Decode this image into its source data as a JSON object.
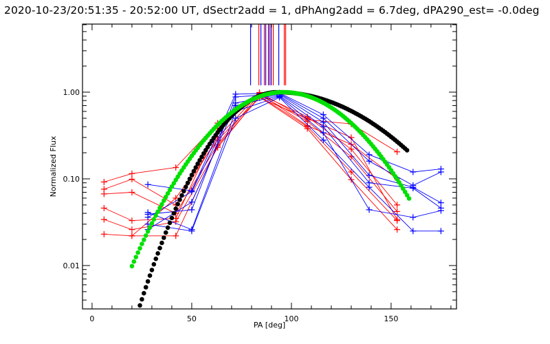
{
  "title": "2020-10-23/20:51:35 - 20:52:00 UT, dSectr2add = 1, dPhAng2add = 6.7deg, dPA290_est= -0.0deg",
  "colors": {
    "red": "#ff0000",
    "blue": "#0000ff",
    "black": "#000000",
    "green": "#00e000",
    "axis": "#000000"
  },
  "chart_data": {
    "type": "line",
    "title": "2020-10-23/20:51:35 - 20:52:00 UT, dSectr2add = 1, dPhAng2add = 6.7deg, dPA290_est= -0.0deg",
    "xlabel": "PA [deg]",
    "ylabel": "Normalized Flux",
    "xlim": [
      -4.8,
      182.8
    ],
    "ylim": [
      0.00316,
      6.1
    ],
    "yscale": "log",
    "xticks": [
      0,
      50,
      100,
      150
    ],
    "xtick_labels": [
      "0",
      "50",
      "100",
      "150"
    ],
    "xminor_step": 10,
    "yticks": [
      0.01,
      0.1,
      1.0
    ],
    "ytick_labels": [
      "0.01",
      "0.10",
      "1.00"
    ],
    "grid": false,
    "model_curves": [
      {
        "name": "black-model",
        "color": "#000000",
        "x_start": 21,
        "x_end": 158,
        "center": 93,
        "sigma_left": 20.5,
        "sigma_right": 37
      },
      {
        "name": "green-model",
        "color": "#00e000",
        "x_start": 20,
        "x_end": 159,
        "center": 96,
        "sigma_left": 25,
        "sigma_right": 26.5
      }
    ],
    "vertical_markers": [
      {
        "x": 79.3,
        "color": "#0000ff"
      },
      {
        "x": 83.4,
        "color": "#ff0000"
      },
      {
        "x": 84.5,
        "color": "#0000ff"
      },
      {
        "x": 86.2,
        "color": "#ff0000"
      },
      {
        "x": 86.9,
        "color": "#0000ff"
      },
      {
        "x": 88.3,
        "color": "#0000ff"
      },
      {
        "x": 89.0,
        "color": "#ff0000"
      },
      {
        "x": 89.7,
        "color": "#0000ff"
      },
      {
        "x": 90.7,
        "color": "#ff0000"
      },
      {
        "x": 93.4,
        "color": "#0000ff"
      },
      {
        "x": 96.2,
        "color": "#ff0000"
      },
      {
        "x": 96.9,
        "color": "#ff0000"
      }
    ],
    "vertical_marker_range": [
      1.2,
      6.1
    ],
    "series": [
      {
        "name": "red-1",
        "color": "#ff0000",
        "x": [
          6,
          20,
          42,
          63,
          84,
          108,
          130,
          153
        ],
        "y": [
          0.092,
          0.115,
          0.135,
          0.44,
          0.99,
          0.48,
          0.43,
          0.205
        ]
      },
      {
        "name": "red-2",
        "color": "#ff0000",
        "x": [
          6,
          20,
          42,
          63,
          84,
          108,
          130,
          153
        ],
        "y": [
          0.076,
          0.099,
          0.05,
          0.3,
          0.97,
          0.41,
          0.25,
          0.1
        ]
      },
      {
        "name": "red-3",
        "color": "#ff0000",
        "x": [
          6,
          20,
          42,
          63,
          84,
          108,
          130,
          153
        ],
        "y": [
          0.067,
          0.07,
          0.04,
          0.25,
          0.95,
          0.52,
          0.22,
          0.05
        ]
      },
      {
        "name": "red-4",
        "color": "#ff0000",
        "x": [
          6,
          20,
          42,
          63,
          84,
          108,
          130,
          153
        ],
        "y": [
          0.046,
          0.033,
          0.035,
          0.38,
          0.93,
          0.46,
          0.18,
          0.042
        ]
      },
      {
        "name": "red-5",
        "color": "#ff0000",
        "x": [
          6,
          20,
          42,
          63,
          84,
          108,
          130,
          153
        ],
        "y": [
          0.034,
          0.026,
          0.032,
          0.23,
          0.9,
          0.4,
          0.12,
          0.033
        ]
      },
      {
        "name": "red-6",
        "color": "#ff0000",
        "x": [
          6,
          20,
          42,
          63,
          84,
          108,
          130,
          153
        ],
        "y": [
          0.023,
          0.022,
          0.022,
          0.24,
          0.88,
          0.38,
          0.098,
          0.026
        ]
      },
      {
        "name": "red-7",
        "color": "#ff0000",
        "x": [
          20,
          42,
          63,
          84,
          108,
          130,
          153
        ],
        "y": [
          0.022,
          0.06,
          0.28,
          0.86,
          0.5,
          0.3,
          0.034
        ]
      },
      {
        "name": "blue-1",
        "color": "#0000ff",
        "x": [
          28,
          50,
          72,
          94,
          116,
          139,
          161,
          175
        ],
        "y": [
          0.086,
          0.073,
          0.95,
          0.98,
          0.55,
          0.19,
          0.12,
          0.13
        ]
      },
      {
        "name": "blue-2",
        "color": "#0000ff",
        "x": [
          28,
          50,
          72,
          94,
          116,
          139,
          161,
          175
        ],
        "y": [
          0.039,
          0.044,
          0.88,
          0.96,
          0.5,
          0.16,
          0.084,
          0.12
        ]
      },
      {
        "name": "blue-3",
        "color": "#0000ff",
        "x": [
          28,
          50,
          72,
          94,
          116,
          139,
          161,
          175
        ],
        "y": [
          0.036,
          0.071,
          0.75,
          0.94,
          0.45,
          0.11,
          0.08,
          0.053
        ]
      },
      {
        "name": "blue-4",
        "color": "#0000ff",
        "x": [
          28,
          50,
          72,
          94,
          116,
          139,
          161,
          175
        ],
        "y": [
          0.026,
          0.054,
          0.7,
          0.91,
          0.4,
          0.09,
          0.078,
          0.046
        ]
      },
      {
        "name": "blue-5",
        "color": "#0000ff",
        "x": [
          28,
          50,
          72,
          94,
          116,
          139,
          161,
          175
        ],
        "y": [
          0.041,
          0.026,
          0.6,
          0.89,
          0.34,
          0.044,
          0.036,
          0.043
        ]
      },
      {
        "name": "blue-6",
        "color": "#0000ff",
        "x": [
          28,
          50,
          72,
          94,
          116,
          139,
          161,
          175
        ],
        "y": [
          0.03,
          0.025,
          0.5,
          0.87,
          0.28,
          0.08,
          0.025,
          0.025
        ]
      }
    ]
  }
}
